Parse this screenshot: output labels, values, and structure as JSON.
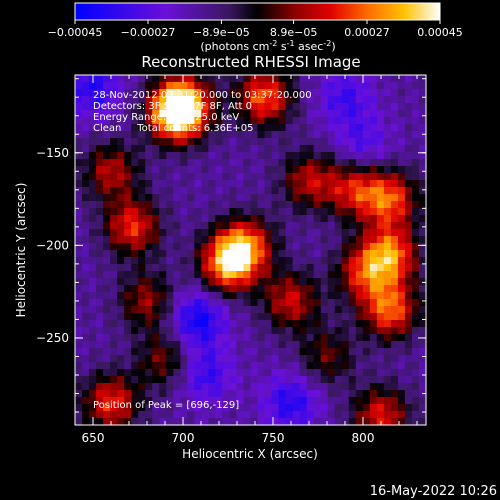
{
  "chart_data": {
    "type": "heatmap",
    "title": "Reconstructed RHESSI Image",
    "xlabel": "Heliocentric X (arcsec)",
    "ylabel": "Heliocentric Y (arcsec)",
    "x_ticks": [
      "650",
      "700",
      "750",
      "800"
    ],
    "y_ticks": [
      "-150",
      "-200",
      "-250"
    ],
    "xlim": [
      640,
      835
    ],
    "ylim": [
      -297,
      -108
    ],
    "colorbar": {
      "ticks": [
        "-0.00045",
        "-0.00027",
        "-8.9e-05",
        "8.9e-05",
        "0.00027",
        "0.00045"
      ],
      "range": [
        -0.00045,
        0.00045
      ],
      "units": "(photons cm",
      "units_sup1": "-2",
      "units_mid1": " s",
      "units_sup2": "-1",
      "units_mid2": " asec",
      "units_sup3": "-2",
      "units_end": ")"
    },
    "info": {
      "line1": "28-Nov-2012 03:31:20.000 to 03:37:20.000",
      "line2": "Detectors: 3F 5F 6F 7F 8F, Att 0",
      "line3": "Energy Range: 6.0 - 25.0 keV",
      "line4": "Clean     Total counts: 6.36E+05"
    },
    "peak_label": "Position of Peak = [696,-129]",
    "peak_position": [
      696,
      -129
    ],
    "intensity_blobs": [
      {
        "x": 725,
        "y": -210,
        "amp": 0.95
      },
      {
        "x": 735,
        "y": -200,
        "amp": 0.75
      },
      {
        "x": 700,
        "y": -124,
        "amp": 0.85
      },
      {
        "x": 696,
        "y": -129,
        "amp": 0.9
      },
      {
        "x": 745,
        "y": -120,
        "amp": 0.8
      },
      {
        "x": 672,
        "y": -190,
        "amp": 0.7
      },
      {
        "x": 660,
        "y": -160,
        "amp": 0.55
      },
      {
        "x": 770,
        "y": -165,
        "amp": 0.55
      },
      {
        "x": 795,
        "y": -170,
        "amp": 0.6
      },
      {
        "x": 815,
        "y": -175,
        "amp": 0.75
      },
      {
        "x": 815,
        "y": -205,
        "amp": 0.85
      },
      {
        "x": 815,
        "y": -235,
        "amp": 0.8
      },
      {
        "x": 800,
        "y": -215,
        "amp": 0.6
      },
      {
        "x": 760,
        "y": -230,
        "amp": 0.6
      },
      {
        "x": 680,
        "y": -230,
        "amp": 0.5
      },
      {
        "x": 660,
        "y": -285,
        "amp": 0.7
      },
      {
        "x": 690,
        "y": -262,
        "amp": 0.45
      },
      {
        "x": 810,
        "y": -292,
        "amp": 0.65
      },
      {
        "x": 780,
        "y": -260,
        "amp": 0.4
      },
      {
        "x": 708,
        "y": -240,
        "amp": -0.55
      },
      {
        "x": 712,
        "y": -270,
        "amp": -0.4
      },
      {
        "x": 760,
        "y": -285,
        "amp": -0.45
      },
      {
        "x": 650,
        "y": -115,
        "amp": -0.45
      },
      {
        "x": 790,
        "y": -120,
        "amp": -0.35
      },
      {
        "x": 800,
        "y": -145,
        "amp": -0.3
      }
    ]
  },
  "timestamp": "16-May-2022 10:26"
}
